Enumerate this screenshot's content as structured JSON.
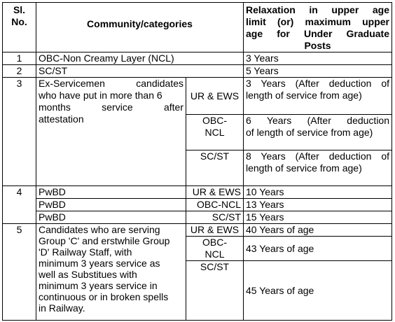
{
  "header": {
    "sl_line1": "Sl.",
    "sl_line2": "No.",
    "community": "Community/categories",
    "relax_line1": "Relaxation in upper age",
    "relax_line2": "limit (or) maximum upper",
    "relax_line3": "age for Under Graduate",
    "relax_line4": "Posts"
  },
  "rows": [
    {
      "sl": "1",
      "community": "OBC-Non Creamy Layer (NCL)",
      "relax": "3 Years"
    },
    {
      "sl": "2",
      "community": "SC/ST",
      "relax": "5 Years"
    },
    {
      "sl": "3",
      "community_lines": [
        "Ex-Servicemen candidates",
        "who have put in more than 6",
        "months service after",
        "attestation"
      ],
      "sub": [
        {
          "cat_lines": [
            "UR & EWS"
          ],
          "relax_lines": [
            "3 Years (After deduction of",
            "length of service from age)"
          ]
        },
        {
          "cat_lines": [
            "OBC-",
            "NCL"
          ],
          "relax_lines": [
            "6 Years (After deduction",
            "of length of service from age)"
          ]
        },
        {
          "cat_lines": [
            "SC/ST"
          ],
          "relax_lines": [
            "8 Years (After deduction of",
            "length of service from age)"
          ]
        }
      ]
    },
    {
      "sl": "4",
      "sub": [
        {
          "community": "PwBD",
          "cat": "UR & EWS",
          "relax": "10 Years"
        },
        {
          "community": "PwBD",
          "cat": "OBC-NCL",
          "relax": "13 Years"
        },
        {
          "community": "PwBD",
          "cat": "SC/ST",
          "relax": "15 Years"
        }
      ]
    },
    {
      "sl": "5",
      "community_lines": [
        "Candidates who are serving",
        "Group 'C' and erstwhile Group",
        "'D' Railway Staff, with",
        "minimum 3 years service as",
        "well as Substitues with",
        "minimum 3 years service in",
        "continuous or in broken spells",
        "in Railway."
      ],
      "sub": [
        {
          "cat_lines": [
            "UR & EWS"
          ],
          "relax": "40 Years of age"
        },
        {
          "cat_lines": [
            "OBC-",
            "NCL"
          ],
          "relax": "43 Years of age"
        },
        {
          "cat_lines": [
            "SC/ST"
          ],
          "relax": "45 Years of age"
        }
      ]
    }
  ]
}
